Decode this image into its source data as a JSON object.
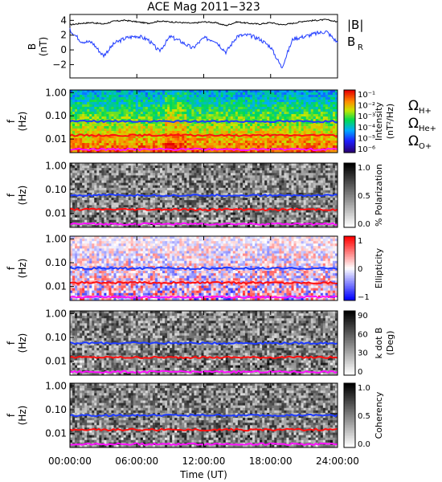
{
  "colors": {
    "B_total": "#000000",
    "B_R": "#1f3bff",
    "H_plus": "#1f3bff",
    "He_plus": "#ff1010",
    "O_plus": "#ff10ff"
  },
  "chart_data": [
    {
      "type": "line",
      "title": "ACE Mag 2011−323",
      "ylabel": "B",
      "yunit": "(nT)",
      "ylim": [
        -3.8,
        4.8
      ],
      "yticks": [
        "4",
        "2",
        "0",
        "−2"
      ],
      "ytick_values": [
        4,
        2,
        0,
        -2
      ],
      "xlim_hours": [
        0,
        24
      ],
      "grid": false,
      "legend_position": "right",
      "series": [
        {
          "name": "|B|",
          "x_hours": [
            0,
            1,
            2,
            3,
            4,
            5,
            6,
            7,
            8,
            9,
            10,
            11,
            12,
            13,
            14,
            15,
            16,
            17,
            18,
            19,
            20,
            21,
            22,
            23,
            24
          ],
          "values": [
            3.4,
            3.6,
            3.7,
            3.5,
            3.9,
            4.0,
            3.8,
            3.6,
            3.9,
            3.8,
            3.7,
            3.6,
            3.8,
            3.7,
            3.3,
            3.8,
            3.6,
            3.5,
            3.7,
            3.4,
            3.6,
            3.9,
            4.0,
            4.1,
            3.8
          ]
        },
        {
          "name": "B",
          "sub": "R",
          "x_hours": [
            0,
            1,
            2,
            3,
            4,
            5,
            6,
            7,
            8,
            9,
            10,
            11,
            12,
            13,
            14,
            15,
            16,
            17,
            18,
            19,
            20,
            21,
            22,
            23,
            24
          ],
          "values": [
            2.7,
            1.2,
            1.0,
            -0.8,
            0.9,
            1.6,
            1.9,
            1.4,
            -0.2,
            1.8,
            1.1,
            0.2,
            1.6,
            1.3,
            -0.3,
            1.9,
            2.0,
            1.5,
            0.4,
            -2.4,
            1.5,
            1.8,
            2.2,
            2.5,
            1.0
          ]
        }
      ]
    },
    {
      "type": "heatmap",
      "ylabel": "f",
      "yunit": "(Hz)",
      "yticks": [
        "1.00",
        "0.10",
        "0.01"
      ],
      "colorbar_label": "Intensity",
      "colorbar_unit": "(nT²/Hz)",
      "colorbar_ticks": [
        "10⁻¹",
        "10⁻²",
        "10⁻³",
        "10⁻⁴",
        "10⁻⁵",
        "10⁻⁶"
      ],
      "colormap": "rainbow",
      "gyro_legend": [
        {
          "label": "Ω",
          "sub": "H+",
          "color": "#1f3bff"
        },
        {
          "label": "Ω",
          "sub": "He+",
          "color": "#ff1010"
        },
        {
          "label": "Ω",
          "sub": "O+",
          "color": "#ff10ff"
        }
      ]
    },
    {
      "type": "heatmap",
      "ylabel": "f",
      "yunit": "(Hz)",
      "yticks": [
        "1.00",
        "0.10",
        "0.01"
      ],
      "colorbar_label": "% Polarization",
      "colorbar_unit": "",
      "colorbar_ticks": [
        "1.0",
        "0.5",
        "0.0"
      ],
      "colormap": "gray"
    },
    {
      "type": "heatmap",
      "ylabel": "f",
      "yunit": "(Hz)",
      "yticks": [
        "1.00",
        "0.10",
        "0.01"
      ],
      "colorbar_label": "Ellipticity",
      "colorbar_unit": "",
      "colorbar_ticks": [
        "1",
        "0",
        "−1"
      ],
      "colormap": "bwr"
    },
    {
      "type": "heatmap",
      "ylabel": "f",
      "yunit": "(Hz)",
      "yticks": [
        "1.00",
        "0.10",
        "0.01"
      ],
      "colorbar_label": "k dot B",
      "colorbar_unit": "(Deg)",
      "colorbar_ticks": [
        "90",
        "60",
        "30",
        "0"
      ],
      "colormap": "gray"
    },
    {
      "type": "heatmap",
      "ylabel": "f",
      "yunit": "(Hz)",
      "yticks": [
        "1.00",
        "0.10",
        "0.01"
      ],
      "colorbar_label": "Coherency",
      "colorbar_unit": "",
      "colorbar_ticks": [
        "1.0",
        "0.5",
        "0.0"
      ],
      "colormap": "gray"
    }
  ],
  "gyro_freq_hz": {
    "H_plus": 0.058,
    "He_plus": 0.0145,
    "O_plus": 0.0036
  },
  "x_axis": {
    "label": "Time (UT)",
    "tick_hours": [
      0,
      6,
      12,
      18,
      24
    ],
    "tick_labels": [
      "00:00:00",
      "06:00:00",
      "12:00:00",
      "18:00:00",
      "24:00:00"
    ]
  }
}
